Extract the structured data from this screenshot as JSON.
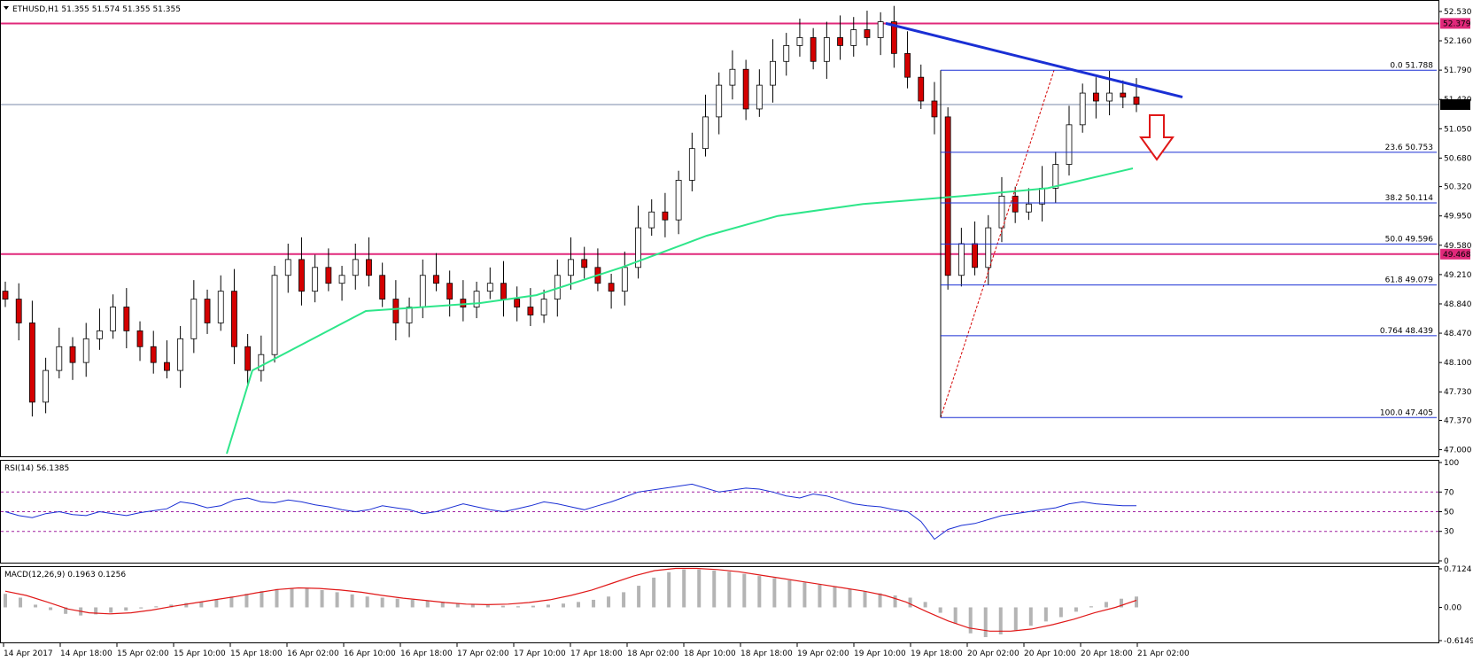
{
  "header": {
    "main": "ETHUSD,H1  51.355 51.574 51.355 51.355",
    "rsi": "RSI(14) 56.1385",
    "macd": "MACD(12,26,9) 0.1963 0.1256"
  },
  "colors": {
    "up_candle": "#ffffff",
    "down_candle": "#d40000",
    "wick": "#000000",
    "ma": "#2ee68a",
    "trendline": "#1a2fd4",
    "fib": "#1a2fd4",
    "resistance": "#e0287a",
    "rsi_line": "#1a2fd4",
    "rsi_levels": "#a020a0",
    "macd_hist": "#b4b4b4",
    "macd_signal": "#e01818",
    "arrow": "#e01818"
  },
  "price_axis": {
    "ticks": [
      "52.530",
      "52.160",
      "51.790",
      "51.420",
      "51.050",
      "50.680",
      "50.320",
      "49.950",
      "49.580",
      "49.210",
      "48.840",
      "48.470",
      "48.100",
      "47.730",
      "47.370",
      "47.000"
    ],
    "current_price": "51.355",
    "resistance_high": "52.379",
    "resistance_low": "49.468"
  },
  "fib_levels": [
    {
      "label": "0.0  51.788",
      "value": 51.788
    },
    {
      "label": "23.6  50.753",
      "value": 50.753
    },
    {
      "label": "38.2  50.114",
      "value": 50.114
    },
    {
      "label": "50.0  49.596",
      "value": 49.596
    },
    {
      "label": "61.8  49.079",
      "value": 49.079
    },
    {
      "label": "0.764  48.439",
      "value": 48.439
    },
    {
      "label": "100.0  47.405",
      "value": 47.405
    }
  ],
  "time_axis": [
    "14 Apr 2017",
    "14 Apr 18:00",
    "15 Apr 02:00",
    "15 Apr 10:00",
    "15 Apr 18:00",
    "16 Apr 02:00",
    "16 Apr 10:00",
    "16 Apr 18:00",
    "17 Apr 02:00",
    "17 Apr 10:00",
    "17 Apr 18:00",
    "18 Apr 02:00",
    "18 Apr 10:00",
    "18 Apr 18:00",
    "19 Apr 02:00",
    "19 Apr 10:00",
    "19 Apr 18:00",
    "20 Apr 02:00",
    "20 Apr 10:00",
    "20 Apr 18:00",
    "21 Apr 02:00"
  ],
  "rsi_axis": [
    "100",
    "70",
    "50",
    "30",
    "0"
  ],
  "macd_axis": [
    "0.7124",
    "0.00",
    "-0.6149"
  ],
  "chart_data": [
    {
      "type": "candlestick",
      "title": "ETHUSD,H1",
      "ylim": [
        47.0,
        52.6
      ],
      "close_path": [
        48.9,
        48.6,
        47.6,
        48.0,
        48.3,
        48.1,
        48.4,
        48.5,
        48.8,
        48.5,
        48.3,
        48.1,
        48.0,
        48.4,
        48.9,
        48.6,
        49.0,
        48.3,
        48.0,
        48.2,
        49.2,
        49.4,
        49.0,
        49.3,
        49.1,
        49.2,
        49.4,
        49.2,
        48.9,
        48.6,
        48.8,
        49.2,
        49.1,
        48.9,
        48.8,
        49.0,
        49.1,
        48.9,
        48.8,
        48.7,
        48.9,
        49.2,
        49.4,
        49.3,
        49.1,
        49.0,
        49.3,
        49.8,
        50.0,
        49.9,
        50.4,
        50.8,
        51.2,
        51.6,
        51.8,
        51.3,
        51.6,
        51.9,
        52.1,
        52.2,
        51.9,
        52.2,
        52.1,
        52.3,
        52.2,
        52.4,
        52.0,
        51.7,
        51.4,
        51.2,
        49.2,
        49.6,
        49.3,
        49.8,
        50.2,
        50.0,
        50.1,
        50.3,
        50.6,
        51.1,
        51.5,
        51.4,
        51.5,
        51.45,
        51.36
      ],
      "moving_average": [
        [
          48.2,
          46.95
        ],
        [
          50.0,
          48.0
        ],
        [
          58.0,
          48.75
        ],
        [
          66.0,
          48.85
        ],
        [
          70.0,
          48.95
        ],
        [
          76.0,
          49.3
        ],
        [
          82.0,
          49.7
        ],
        [
          87.0,
          49.95
        ],
        [
          93.0,
          50.1
        ],
        [
          100.0,
          50.2
        ],
        [
          106.0,
          50.3
        ],
        [
          112.0,
          50.55
        ]
      ],
      "trendline": [
        [
          52.38,
          52.379
        ],
        [
          51.788,
          51.788
        ],
        [
          51.45,
          51.45
        ]
      ],
      "annotation": "down-arrow"
    },
    {
      "type": "line",
      "title": "RSI(14) 56.1385",
      "ylim": [
        0,
        100
      ],
      "levels": [
        70,
        50,
        30
      ],
      "values": [
        50,
        46,
        44,
        48,
        50,
        47,
        46,
        50,
        48,
        46,
        49,
        51,
        53,
        60,
        58,
        54,
        56,
        62,
        64,
        60,
        59,
        62,
        60,
        57,
        55,
        52,
        50,
        52,
        56,
        54,
        52,
        48,
        50,
        54,
        58,
        55,
        52,
        50,
        53,
        56,
        60,
        58,
        55,
        52,
        56,
        60,
        65,
        70,
        72,
        74,
        76,
        78,
        74,
        70,
        72,
        74,
        73,
        70,
        66,
        64,
        68,
        66,
        62,
        58,
        56,
        55,
        52,
        50,
        40,
        22,
        32,
        36,
        38,
        42,
        46,
        48,
        50,
        52,
        54,
        58,
        60,
        58,
        57,
        56,
        56
      ]
    },
    {
      "type": "bar",
      "title": "MACD(12,26,9) 0.1963 0.1256",
      "ylim": [
        -0.6149,
        0.7124
      ],
      "values": [
        0.25,
        0.18,
        0.05,
        -0.05,
        -0.12,
        -0.15,
        -0.13,
        -0.1,
        -0.06,
        -0.02,
        0.02,
        0.05,
        0.08,
        0.1,
        0.14,
        0.2,
        0.25,
        0.3,
        0.34,
        0.36,
        0.35,
        0.32,
        0.28,
        0.24,
        0.2,
        0.18,
        0.16,
        0.14,
        0.12,
        0.1,
        0.08,
        0.06,
        0.04,
        0.03,
        0.02,
        0.03,
        0.05,
        0.07,
        0.1,
        0.14,
        0.2,
        0.28,
        0.4,
        0.55,
        0.65,
        0.7,
        0.7,
        0.68,
        0.66,
        0.62,
        0.58,
        0.54,
        0.5,
        0.46,
        0.42,
        0.38,
        0.34,
        0.3,
        0.26,
        0.22,
        0.18,
        0.1,
        -0.1,
        -0.3,
        -0.48,
        -0.55,
        -0.5,
        -0.42,
        -0.34,
        -0.26,
        -0.18,
        -0.08,
        0.02,
        0.1,
        0.16,
        0.2
      ],
      "signal": [
        0.3,
        0.22,
        0.1,
        -0.03,
        -0.1,
        -0.12,
        -0.1,
        -0.05,
        0.02,
        0.08,
        0.14,
        0.2,
        0.27,
        0.33,
        0.36,
        0.35,
        0.32,
        0.28,
        0.22,
        0.17,
        0.13,
        0.09,
        0.06,
        0.05,
        0.06,
        0.09,
        0.14,
        0.22,
        0.32,
        0.45,
        0.58,
        0.68,
        0.72,
        0.72,
        0.7,
        0.66,
        0.6,
        0.54,
        0.48,
        0.42,
        0.36,
        0.3,
        0.22,
        0.1,
        -0.08,
        -0.25,
        -0.38,
        -0.44,
        -0.44,
        -0.4,
        -0.32,
        -0.22,
        -0.1,
        0.0,
        0.13
      ]
    }
  ]
}
